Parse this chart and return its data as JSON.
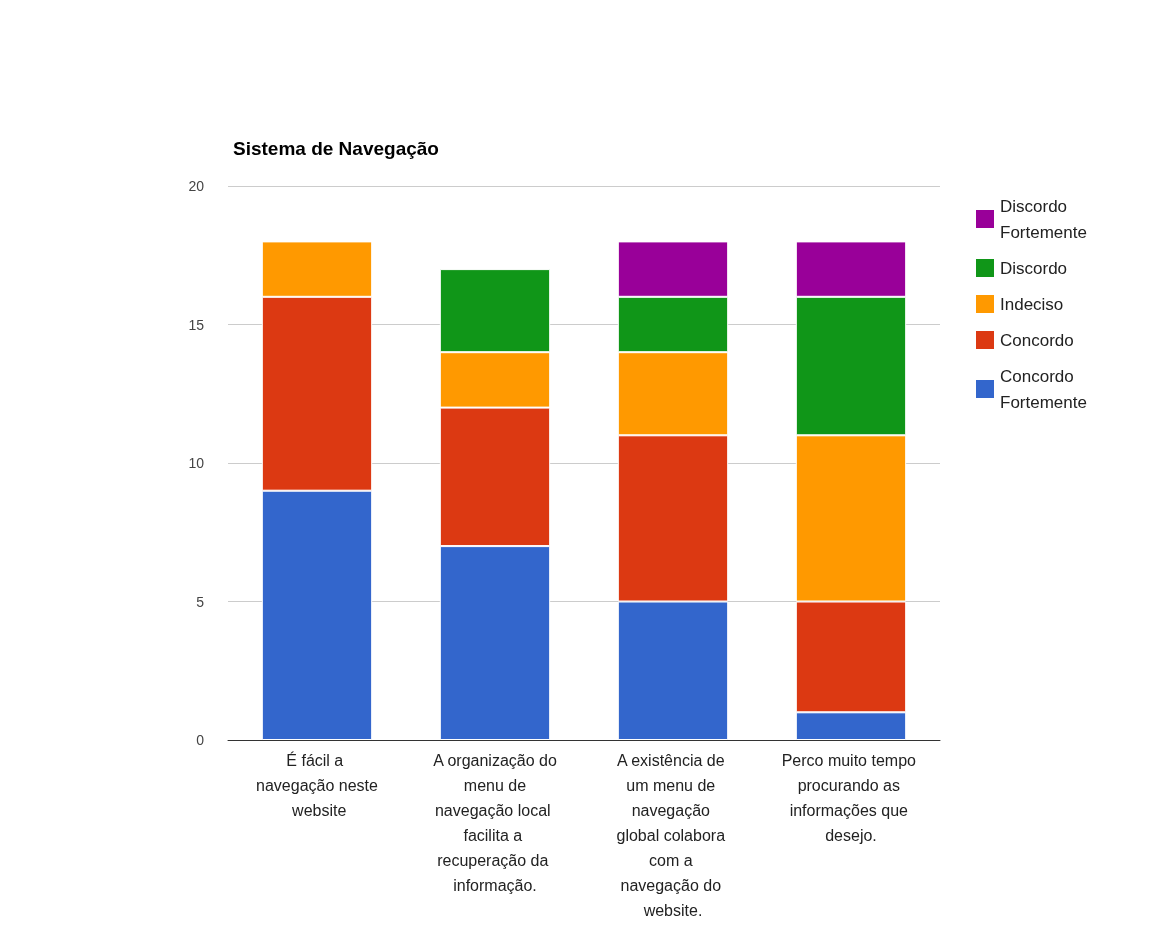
{
  "chart_data": {
    "type": "bar",
    "title": "Sistema de Navegação",
    "stacked": true,
    "categories": [
      "É fácil a navegação neste website",
      "A organização do menu de navegação local facilita a recuperação da informação.",
      "A existência de um menu de navegação global colabora com a navegação do website.",
      "Perco muito tempo procurando as informações que desejo."
    ],
    "series": [
      {
        "name": "Concordo Fortemente",
        "color": "#3366cc",
        "values": [
          9,
          7,
          5,
          1
        ]
      },
      {
        "name": "Concordo",
        "color": "#dc3912",
        "values": [
          7,
          5,
          6,
          4
        ]
      },
      {
        "name": "Indeciso",
        "color": "#ff9900",
        "values": [
          2,
          2,
          3,
          6
        ]
      },
      {
        "name": "Discordo",
        "color": "#109618",
        "values": [
          0,
          3,
          2,
          5
        ]
      },
      {
        "name": "Discordo Fortemente",
        "color": "#990099",
        "values": [
          0,
          0,
          2,
          2
        ]
      }
    ],
    "ylim": [
      0,
      20
    ],
    "yticks": [
      0,
      5,
      10,
      15,
      20
    ],
    "grid": true,
    "legend": "top right"
  }
}
